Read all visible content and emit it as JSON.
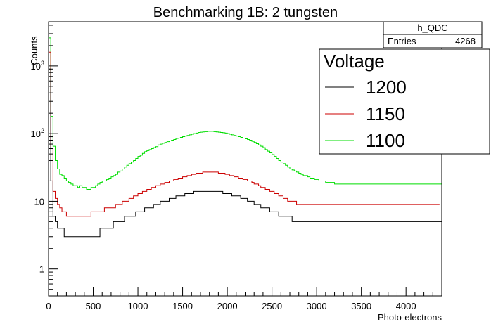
{
  "chart_data": {
    "type": "step-histogram",
    "title": "Benchmarking 1B: 2 tungsten",
    "xlabel": "Photo-electrons",
    "ylabel": "Counts",
    "xlim": [
      0,
      4400
    ],
    "ylim": [
      0.4,
      4500
    ],
    "y_scale": "log",
    "grid": false,
    "x_ticks": [
      0,
      500,
      1000,
      1500,
      2000,
      2500,
      3000,
      3500,
      4000
    ],
    "y_ticks": [
      {
        "value": 1,
        "label": "1"
      },
      {
        "value": 10,
        "label": "10"
      },
      {
        "value": 100,
        "label": "10",
        "sup": "2"
      },
      {
        "value": 1000,
        "label": "10",
        "sup": "3"
      }
    ],
    "stats_box": {
      "name": "h_QDC",
      "entries_label": "Entries",
      "entries_value": "4268"
    },
    "legend": {
      "title": "Voltage",
      "placement": "top-right",
      "entries": [
        {
          "label": "1200",
          "color": "#000000"
        },
        {
          "label": "1150",
          "color": "#cc0000"
        },
        {
          "label": "1100",
          "color": "#00dd00"
        }
      ]
    },
    "series": [
      {
        "name": "1100",
        "color": "#00dd00",
        "bin_width": 25,
        "values": [
          2600,
          180,
          65,
          40,
          30,
          25,
          24,
          22,
          20,
          19,
          18,
          17,
          17,
          16,
          17,
          16,
          16,
          15,
          15,
          16,
          16,
          17,
          18,
          19,
          20,
          20,
          21,
          22,
          23,
          24,
          25,
          27,
          28,
          30,
          32,
          34,
          36,
          38,
          40,
          43,
          46,
          48,
          51,
          54,
          56,
          58,
          60,
          62,
          64,
          68,
          70,
          72,
          74,
          76,
          78,
          80,
          82,
          85,
          86,
          88,
          90,
          92,
          94,
          96,
          98,
          100,
          102,
          104,
          105,
          106,
          107,
          108,
          108,
          108,
          107,
          106,
          105,
          104,
          103,
          102,
          100,
          98,
          96,
          94,
          92,
          90,
          88,
          86,
          84,
          82,
          80,
          77,
          74,
          71,
          68,
          65,
          62,
          58,
          55,
          52,
          49,
          46,
          43,
          40,
          38,
          36,
          34,
          32,
          30,
          29,
          28,
          27,
          26,
          25,
          24,
          24,
          23,
          22,
          22,
          21,
          21,
          20,
          20,
          20,
          19,
          19,
          19,
          19,
          18,
          18,
          18,
          18,
          18,
          18,
          18,
          18,
          18,
          18,
          18,
          18,
          18,
          18,
          18,
          18,
          18,
          18,
          18,
          18,
          18,
          18,
          18,
          18,
          18,
          18,
          18,
          18,
          18,
          18,
          18,
          18,
          18,
          18,
          18,
          18,
          18,
          18,
          18,
          18,
          18,
          18,
          18,
          18,
          18,
          18,
          18,
          18,
          18
        ]
      },
      {
        "name": "1150",
        "color": "#cc0000",
        "bin_width": 25,
        "values": [
          1600,
          60,
          14,
          11,
          9,
          8,
          7,
          7,
          6,
          6,
          6,
          6,
          6,
          6,
          6,
          6,
          6,
          6,
          6,
          7,
          7,
          7,
          7,
          7,
          7,
          8,
          8,
          8,
          8,
          8,
          9,
          9,
          9,
          10,
          10,
          10,
          11,
          11,
          12,
          12,
          13,
          13,
          14,
          14,
          15,
          15,
          16,
          16,
          17,
          17,
          18,
          18,
          19,
          19,
          20,
          20,
          21,
          21,
          22,
          22,
          23,
          23,
          24,
          24,
          25,
          25,
          26,
          26,
          26,
          27,
          27,
          27,
          27,
          27,
          27,
          27,
          26,
          26,
          26,
          25,
          25,
          24,
          24,
          23,
          23,
          22,
          22,
          21,
          21,
          20,
          20,
          19,
          18,
          18,
          17,
          16,
          16,
          15,
          15,
          14,
          14,
          13,
          13,
          12,
          12,
          11,
          11,
          10,
          10,
          10,
          10,
          9,
          9,
          9,
          9,
          9,
          9,
          9,
          9,
          9,
          9,
          9,
          9,
          9,
          9,
          9,
          9,
          9,
          9,
          9,
          9,
          9,
          9,
          9,
          9,
          9,
          9,
          9,
          9,
          9,
          9,
          9,
          9,
          9,
          9,
          9,
          9,
          9,
          9,
          9,
          9,
          9,
          9,
          9,
          9,
          9,
          9,
          9,
          9,
          9,
          9,
          9,
          9,
          9,
          9,
          9,
          9,
          9,
          9,
          9,
          9,
          9,
          9,
          9,
          9
        ]
      },
      {
        "name": "1200",
        "color": "#000000",
        "bin_width": 25,
        "values": [
          900,
          20,
          6,
          5,
          4,
          4,
          4,
          3,
          3,
          3,
          3,
          3,
          3,
          3,
          3,
          3,
          3,
          3,
          3,
          3,
          3,
          3,
          3,
          4,
          4,
          4,
          4,
          4,
          4,
          5,
          5,
          5,
          5,
          5,
          6,
          6,
          6,
          6,
          6,
          7,
          7,
          7,
          7,
          8,
          8,
          8,
          8,
          9,
          9,
          9,
          10,
          10,
          10,
          10,
          11,
          11,
          11,
          12,
          12,
          12,
          12,
          13,
          13,
          13,
          13,
          14,
          14,
          14,
          14,
          14,
          14,
          14,
          14,
          14,
          14,
          14,
          14,
          14,
          13,
          13,
          13,
          13,
          12,
          12,
          12,
          12,
          11,
          11,
          11,
          10,
          10,
          10,
          9,
          9,
          9,
          8,
          8,
          8,
          8,
          7,
          7,
          7,
          7,
          6,
          6,
          6,
          6,
          6,
          6,
          5,
          5,
          5,
          5,
          5,
          5,
          5,
          5,
          5,
          5,
          5,
          5,
          5,
          5,
          5,
          5,
          5,
          5,
          5,
          5,
          5,
          5,
          5,
          5,
          5,
          5,
          5,
          5,
          5,
          5,
          5,
          5,
          5,
          5,
          5,
          5,
          5,
          5,
          5,
          5,
          5,
          5,
          5,
          5,
          5,
          5,
          5,
          5,
          5,
          5,
          5,
          5,
          5,
          5,
          5,
          5,
          5,
          5,
          5,
          5,
          5,
          5,
          5,
          5,
          5,
          5,
          5
        ]
      }
    ]
  }
}
